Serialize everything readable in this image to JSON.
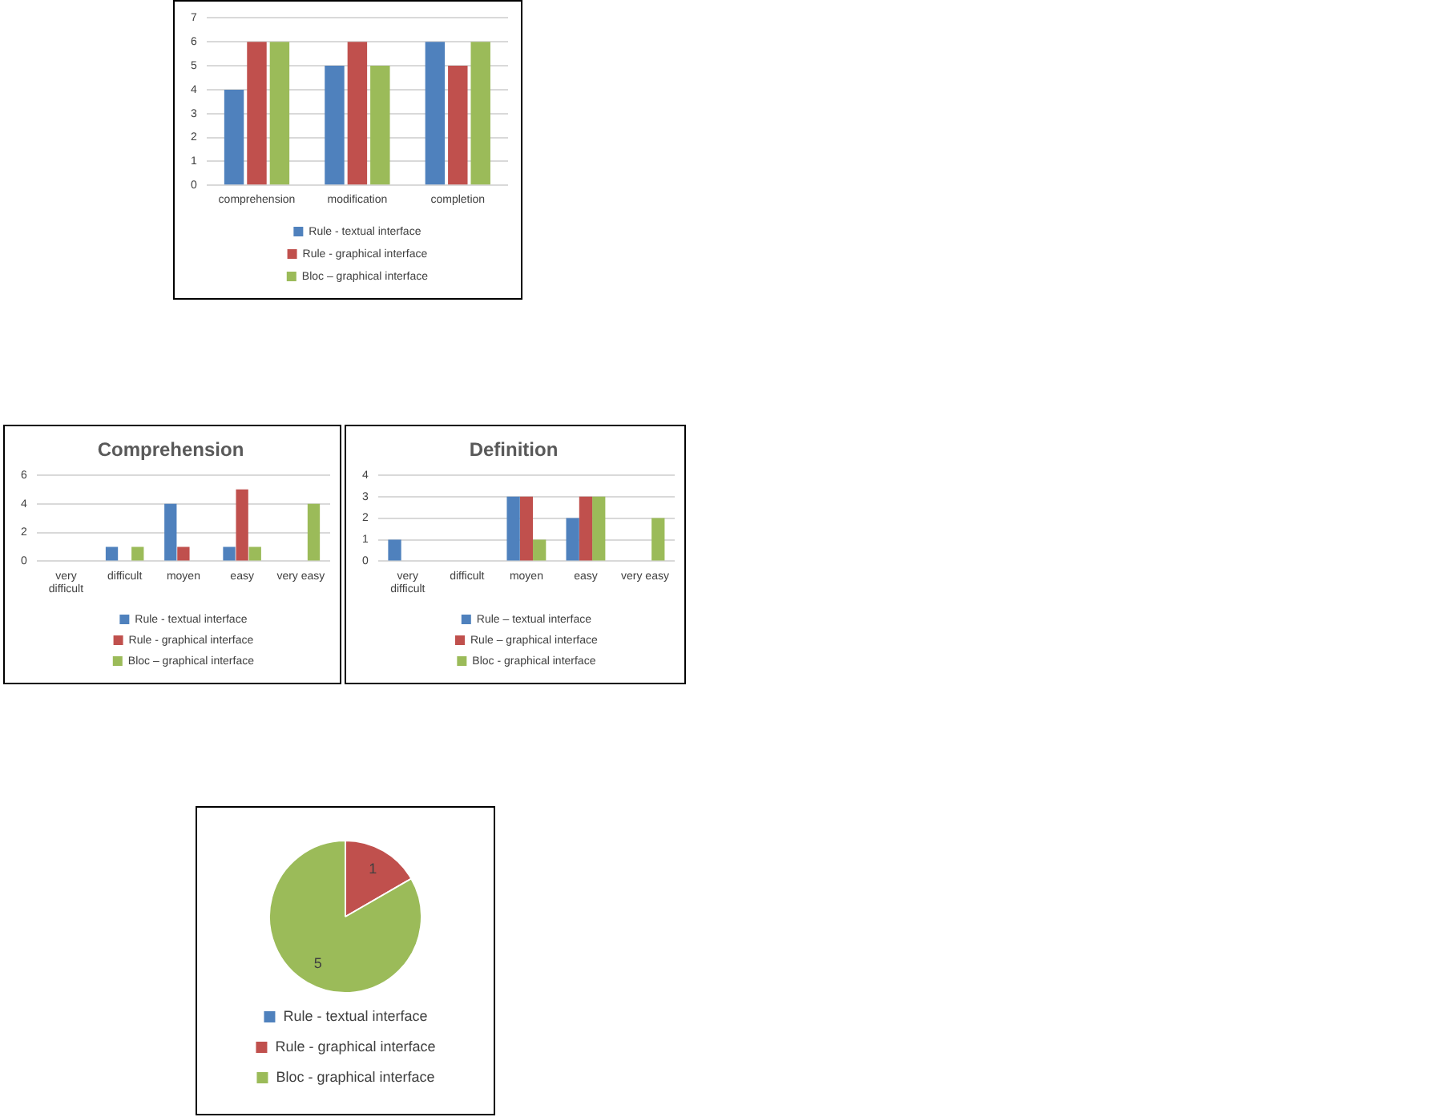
{
  "chart_data": [
    {
      "type": "bar",
      "categories": [
        "comprehension",
        "modification",
        "completion"
      ],
      "series": [
        {
          "name": "Rule - textual interface",
          "color": "#4f81bd",
          "values": [
            4,
            5,
            6
          ]
        },
        {
          "name": "Rule - graphical interface",
          "color": "#c0504d",
          "values": [
            6,
            6,
            5
          ]
        },
        {
          "name": "Bloc – graphical interface",
          "color": "#9bbb59",
          "values": [
            6,
            5,
            6
          ]
        }
      ],
      "ylim": [
        0,
        7
      ],
      "yticks": [
        0,
        1,
        2,
        3,
        4,
        5,
        6,
        7
      ],
      "grid": "y",
      "legend": "bottom"
    },
    {
      "type": "bar",
      "title": "Comprehension",
      "categories": [
        "very difficult",
        "difficult",
        "moyen",
        "easy",
        "very easy"
      ],
      "series": [
        {
          "name": "Rule - textual interface",
          "color": "#4f81bd",
          "values": [
            0,
            1,
            4,
            1,
            0
          ]
        },
        {
          "name": "Rule - graphical interface",
          "color": "#c0504d",
          "values": [
            0,
            0,
            1,
            5,
            0
          ]
        },
        {
          "name": "Bloc – graphical interface",
          "color": "#9bbb59",
          "values": [
            0,
            1,
            0,
            1,
            4
          ]
        }
      ],
      "ylim": [
        0,
        6
      ],
      "yticks": [
        0,
        2,
        4,
        6
      ],
      "grid": "y",
      "legend": "bottom"
    },
    {
      "type": "bar",
      "title": "Definition",
      "categories": [
        "very difficult",
        "difficult",
        "moyen",
        "easy",
        "very easy"
      ],
      "series": [
        {
          "name": "Rule – textual interface",
          "color": "#4f81bd",
          "values": [
            1,
            0,
            3,
            2,
            0
          ]
        },
        {
          "name": "Rule – graphical interface",
          "color": "#c0504d",
          "values": [
            0,
            0,
            3,
            3,
            0
          ]
        },
        {
          "name": "Bloc - graphical interface",
          "color": "#9bbb59",
          "values": [
            0,
            0,
            1,
            3,
            2
          ]
        }
      ],
      "ylim": [
        0,
        4
      ],
      "yticks": [
        0,
        1,
        2,
        3,
        4
      ],
      "grid": "y",
      "legend": "bottom"
    },
    {
      "type": "pie",
      "categories": [
        "Rule - textual interface",
        "Rule - graphical interface",
        "Bloc - graphical interface"
      ],
      "values": [
        0,
        1,
        5
      ],
      "colors": [
        "#4f81bd",
        "#c0504d",
        "#9bbb59"
      ],
      "value_labels": [
        null,
        "1",
        "5"
      ],
      "legend": "bottom"
    }
  ]
}
